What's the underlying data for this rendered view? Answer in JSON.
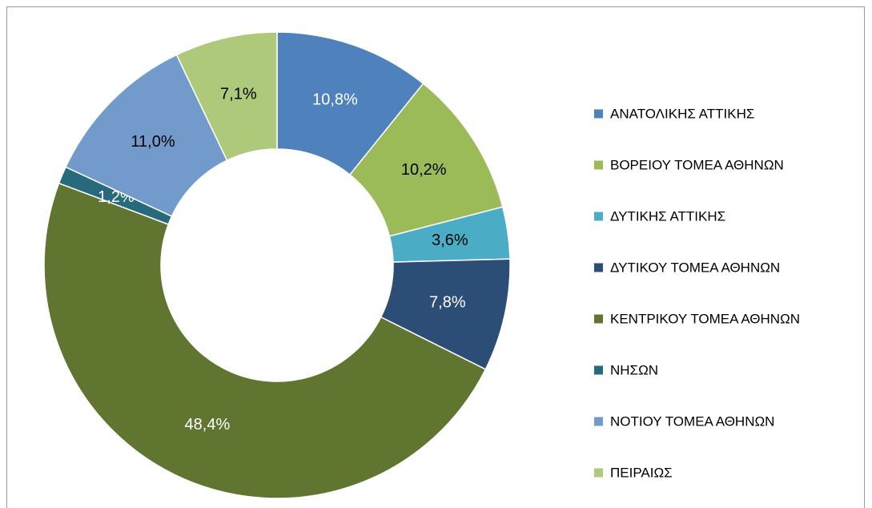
{
  "chart_data": {
    "type": "doughnut",
    "categories": [
      "ΑΝΑΤΟΛΙΚΗΣ ΑΤΤΙΚΗΣ",
      "ΒΟΡΕΙΟΥ ΤΟΜΕΑ ΑΘΗΝΩΝ",
      "ΔΥΤΙΚΗΣ ΑΤΤΙΚΗΣ",
      "ΔΥΤΙΚΟΥ ΤΟΜΕΑ ΑΘΗΝΩΝ",
      "ΚΕΝΤΡΙΚΟΥ ΤΟΜΕΑ ΑΘΗΝΩΝ",
      "ΝΗΣΩΝ",
      "ΝΟΤΙΟΥ ΤΟΜΕΑ ΑΘΗΝΩΝ",
      "ΠΕΙΡΑΙΩΣ"
    ],
    "values": [
      10.8,
      10.2,
      3.6,
      7.8,
      48.4,
      1.2,
      11.0,
      7.1
    ],
    "value_labels": [
      "10,8%",
      "10,2%",
      "3,6%",
      "7,8%",
      "48,4%",
      "1,2%",
      "11,0%",
      "7,1%"
    ],
    "colors": [
      "#4f81bd",
      "#9bbb59",
      "#4bacc6",
      "#2c4d75",
      "#5f7530",
      "#276a7c",
      "#729aca",
      "#afc97a"
    ],
    "legend": "right"
  }
}
